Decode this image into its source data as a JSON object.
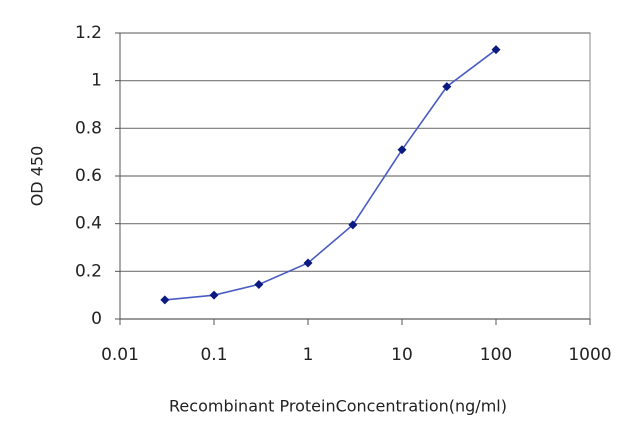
{
  "chart_data": {
    "type": "line",
    "x_scale": "log",
    "x": [
      0.03,
      0.1,
      0.3,
      1,
      3,
      10,
      30,
      100
    ],
    "values": [
      0.08,
      0.1,
      0.145,
      0.235,
      0.395,
      0.71,
      0.975,
      1.13
    ],
    "color": "#4a5cc4",
    "marker_color": "#0a1a80",
    "xlabel": "Recombinant ProteinConcentration(ng/ml)",
    "ylabel": "OD 450",
    "xlim": [
      0.01,
      1000
    ],
    "xticks": [
      0.01,
      0.1,
      1,
      10,
      100,
      1000
    ],
    "ylim": [
      0,
      1.2
    ],
    "yticks": [
      0,
      0.2,
      0.4,
      0.6,
      0.8,
      1,
      1.2
    ],
    "grid": true
  }
}
